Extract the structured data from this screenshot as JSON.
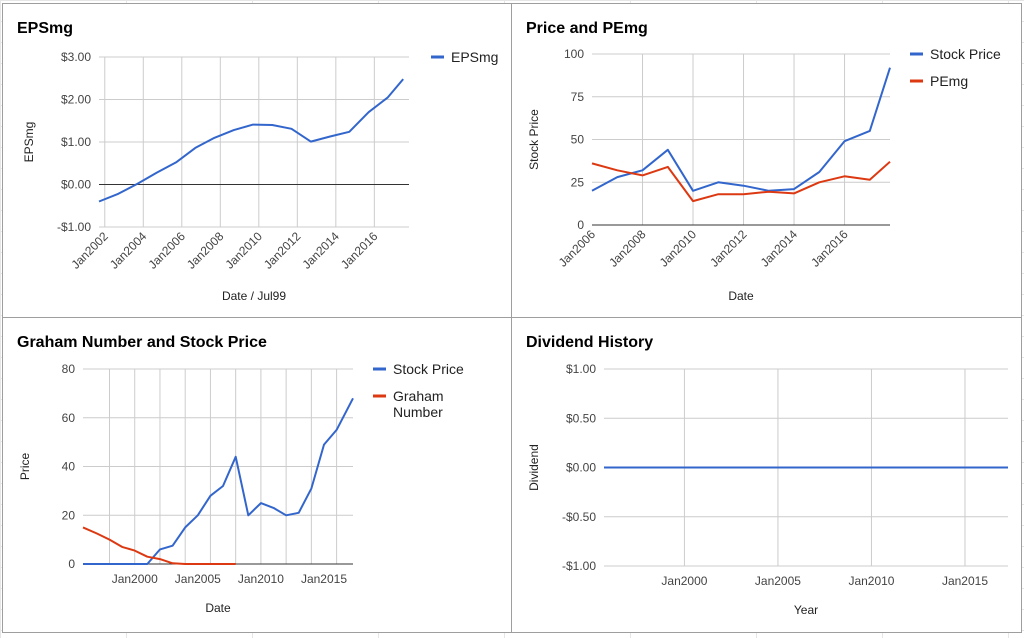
{
  "chart_data": [
    {
      "id": "eps",
      "type": "line",
      "title": "EPSmg",
      "xlabel": "Date / Jul99",
      "ylabel": "EPSmg",
      "ylim": [
        -1,
        3
      ],
      "yticks": [
        3,
        2,
        1,
        0,
        -1
      ],
      "ytick_labels": [
        "$3.00",
        "$2.00",
        "$1.00",
        "$0.00",
        "-$1.00"
      ],
      "xlim": [
        2001.7,
        2017.8
      ],
      "xticks": [
        2002,
        2004,
        2006,
        2008,
        2010,
        2012,
        2014,
        2016
      ],
      "xtick_labels": [
        "Jan2002",
        "Jan2004",
        "Jan2006",
        "Jan2008",
        "Jan2010",
        "Jan2012",
        "Jan2014",
        "Jan2016"
      ],
      "vgrid": [
        2002,
        2004,
        2006,
        2008,
        2010,
        2012,
        2014,
        2016
      ],
      "zero_line": 0,
      "legend": "right",
      "series": [
        {
          "name": "EPSmg",
          "color": "#3366cc",
          "x": [
            2001.7,
            2002.7,
            2003.7,
            2004.7,
            2005.7,
            2006.7,
            2007.7,
            2008.7,
            2009.7,
            2010.7,
            2011.7,
            2012.7,
            2013.7,
            2014.7,
            2015.7,
            2016.7,
            2017.5
          ],
          "y": [
            -0.4,
            -0.22,
            0.02,
            0.28,
            0.52,
            0.86,
            1.1,
            1.28,
            1.41,
            1.4,
            1.31,
            1.01,
            1.13,
            1.24,
            1.7,
            2.05,
            2.48
          ]
        }
      ]
    },
    {
      "id": "price",
      "type": "line",
      "title": "Price and PEmg",
      "xlabel": "Date",
      "ylabel": "Stock Price",
      "ylim": [
        0,
        100
      ],
      "yticks": [
        100,
        75,
        50,
        25,
        0
      ],
      "ytick_labels": [
        "100",
        "75",
        "50",
        "25",
        "0"
      ],
      "xlim": [
        2006,
        2017.8
      ],
      "xticks": [
        2006,
        2008,
        2010,
        2012,
        2014,
        2016
      ],
      "xtick_labels": [
        "Jan2006",
        "Jan2008",
        "Jan2010",
        "Jan2012",
        "Jan2014",
        "Jan2016"
      ],
      "vgrid": [
        2008,
        2010,
        2012,
        2014,
        2016
      ],
      "zero_line": 0,
      "legend": "right",
      "series": [
        {
          "name": "Stock Price",
          "color": "#3366cc",
          "x": [
            2006,
            2007,
            2008,
            2009,
            2010,
            2011,
            2012,
            2013,
            2014,
            2015,
            2016,
            2017,
            2017.8
          ],
          "y": [
            20,
            28,
            32,
            44,
            20,
            25,
            23,
            20,
            21,
            31,
            49,
            55,
            92
          ]
        },
        {
          "name": "PEmg",
          "color": "#dc3912",
          "x": [
            2006,
            2007,
            2008,
            2009,
            2010,
            2011,
            2012,
            2013,
            2014,
            2015,
            2016,
            2017,
            2017.8
          ],
          "y": [
            36,
            32,
            29,
            34,
            14,
            18,
            18,
            19.5,
            18.5,
            25,
            28.5,
            26.5,
            37
          ]
        }
      ]
    },
    {
      "id": "graham",
      "type": "line",
      "title": "Graham Number and Stock Price",
      "xlabel": "Date",
      "ylabel": "Price",
      "ylim": [
        0,
        80
      ],
      "yticks": [
        80,
        60,
        40,
        20,
        0
      ],
      "ytick_labels": [
        "80",
        "60",
        "40",
        "20",
        "0"
      ],
      "xlim": [
        1995.9,
        2017.3
      ],
      "xticks": [
        2000,
        2005,
        2010,
        2015
      ],
      "xtick_labels": [
        "Jan2000",
        "Jan2005",
        "Jan2010",
        "Jan2015"
      ],
      "vgrid": [
        1998,
        2000,
        2002,
        2004,
        2006,
        2008,
        2010,
        2012,
        2014,
        2016
      ],
      "zero_line": 0,
      "legend": "right",
      "series": [
        {
          "name": "Stock Price",
          "color": "#3366cc",
          "x": [
            1995.9,
            1997,
            1998,
            1999,
            2000,
            2001,
            2002,
            2003,
            2004,
            2005,
            2006,
            2007,
            2008,
            2009,
            2010,
            2011,
            2012,
            2013,
            2014,
            2015,
            2016,
            2017.3
          ],
          "y": [
            0,
            0,
            0,
            0,
            0,
            0,
            6,
            7.5,
            15,
            20,
            28,
            32,
            44,
            20,
            25,
            23,
            20,
            21,
            31,
            49,
            55,
            68
          ]
        },
        {
          "name": "Graham Number",
          "color": "#dc3912",
          "x": [
            1995.9,
            1997,
            1998,
            1999,
            2000,
            2001,
            2002,
            2003,
            2004,
            2005,
            2006,
            2007,
            2008
          ],
          "y": [
            15,
            12.5,
            10,
            7,
            5.5,
            3,
            2,
            0.3,
            0,
            0,
            0,
            0,
            0
          ]
        }
      ]
    },
    {
      "id": "dividend",
      "type": "line",
      "title": "Dividend History",
      "xlabel": "Year",
      "ylabel": "Dividend",
      "ylim": [
        -1,
        1
      ],
      "yticks": [
        1,
        0.5,
        0,
        -0.5,
        -1
      ],
      "ytick_labels": [
        "$1.00",
        "$0.50",
        "$0.00",
        "-$0.50",
        "-$1.00"
      ],
      "xlim": [
        1995.7,
        2017.3
      ],
      "xticks": [
        2000,
        2005,
        2010,
        2015
      ],
      "xtick_labels": [
        "Jan2000",
        "Jan2005",
        "Jan2010",
        "Jan2015"
      ],
      "vgrid": [
        2000,
        2005,
        2010,
        2015
      ],
      "zero_line": 0,
      "legend": "none",
      "series": [
        {
          "name": "",
          "color": "#3366cc",
          "x": [
            1995.7,
            2017.3
          ],
          "y": [
            0,
            0
          ]
        }
      ]
    }
  ]
}
